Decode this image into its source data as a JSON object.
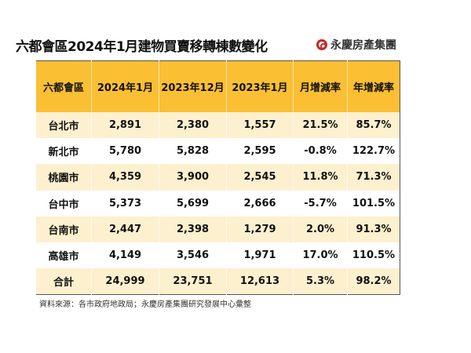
{
  "title": "六都會區2024年1月建物買賣移轉棟數變化",
  "logo": {
    "text": "永慶房產集團",
    "color": "#c62828"
  },
  "colors": {
    "header": "#FBBF33",
    "row_alt": "#FDF0CF"
  },
  "chart_data": {
    "type": "table",
    "columns": [
      "六都會區",
      "2024年1月",
      "2023年12月",
      "2023年1月",
      "月增減率",
      "年增減率"
    ],
    "rows": [
      [
        "台北市",
        "2,891",
        "2,380",
        "1,557",
        "21.5%",
        "85.7%"
      ],
      [
        "新北市",
        "5,780",
        "5,828",
        "2,595",
        "-0.8%",
        "122.7%"
      ],
      [
        "桃園市",
        "4,359",
        "3,900",
        "2,545",
        "11.8%",
        "71.3%"
      ],
      [
        "台中市",
        "5,373",
        "5,699",
        "2,666",
        "-5.7%",
        "101.5%"
      ],
      [
        "台南市",
        "2,447",
        "2,398",
        "1,279",
        "2.0%",
        "91.3%"
      ],
      [
        "高雄市",
        "4,149",
        "3,546",
        "1,971",
        "17.0%",
        "110.5%"
      ],
      [
        "合計",
        "24,999",
        "23,751",
        "12,613",
        "5.3%",
        "98.2%"
      ]
    ]
  },
  "footer": "資料來源：各市政府地政局；永慶房產集團研究發展中心彙整"
}
